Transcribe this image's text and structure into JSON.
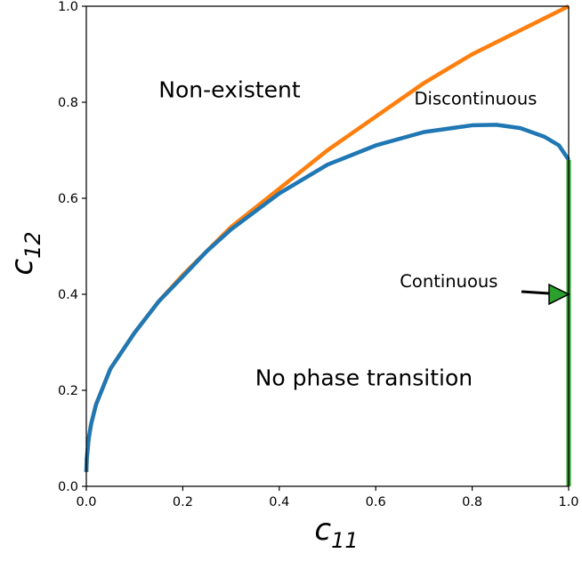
{
  "chart_data": {
    "type": "line",
    "xlabel": "c",
    "xlabel_subscript": "11",
    "ylabel": "c",
    "ylabel_subscript": "12",
    "xlim": [
      0.0,
      1.0
    ],
    "ylim": [
      0.0,
      1.0
    ],
    "xticks": [
      0.0,
      0.2,
      0.4,
      0.6,
      0.8,
      1.0
    ],
    "yticks": [
      0.0,
      0.2,
      0.4,
      0.6,
      0.8,
      1.0
    ],
    "xtick_labels": [
      "0.0",
      "0.2",
      "0.4",
      "0.6",
      "0.8",
      "1.0"
    ],
    "ytick_labels": [
      "0.0",
      "0.2",
      "0.4",
      "0.6",
      "0.8",
      "1.0"
    ],
    "grid": false,
    "series": [
      {
        "color": "#ff7f0e",
        "x": [
          0.0,
          0.001,
          0.005,
          0.01,
          0.02,
          0.05,
          0.1,
          0.15,
          0.2,
          0.3,
          0.4,
          0.5,
          0.6,
          0.7,
          0.8,
          0.9,
          1.0
        ],
        "y": [
          0.03,
          0.058,
          0.1,
          0.13,
          0.17,
          0.245,
          0.32,
          0.385,
          0.44,
          0.54,
          0.62,
          0.7,
          0.77,
          0.84,
          0.9,
          0.95,
          1.0
        ]
      },
      {
        "color": "#1f77b4",
        "x": [
          0.0,
          0.001,
          0.005,
          0.01,
          0.02,
          0.05,
          0.1,
          0.15,
          0.2,
          0.25,
          0.3,
          0.4,
          0.5,
          0.6,
          0.7,
          0.8,
          0.85,
          0.9,
          0.95,
          0.98,
          1.0
        ],
        "y": [
          0.03,
          0.058,
          0.1,
          0.13,
          0.17,
          0.245,
          0.32,
          0.385,
          0.437,
          0.49,
          0.535,
          0.61,
          0.67,
          0.71,
          0.738,
          0.752,
          0.753,
          0.746,
          0.728,
          0.71,
          0.68
        ]
      },
      {
        "color": "#2ca02c",
        "x": [
          1.0,
          1.0
        ],
        "y": [
          0.0,
          0.68
        ]
      }
    ],
    "annotations": [
      {
        "text": "Non-existent",
        "x": 0.15,
        "y": 0.81,
        "class": "region"
      },
      {
        "text": "Discontinuous",
        "x": 0.68,
        "y": 0.795,
        "class": "curve"
      },
      {
        "text": "No phase transition",
        "x": 0.35,
        "y": 0.21,
        "class": "region"
      },
      {
        "text": "Continuous",
        "x": 0.65,
        "y": 0.415,
        "class": "curve",
        "arrow_to": [
          1.0,
          0.4
        ]
      }
    ],
    "arrow_color": "#2ca02c"
  }
}
